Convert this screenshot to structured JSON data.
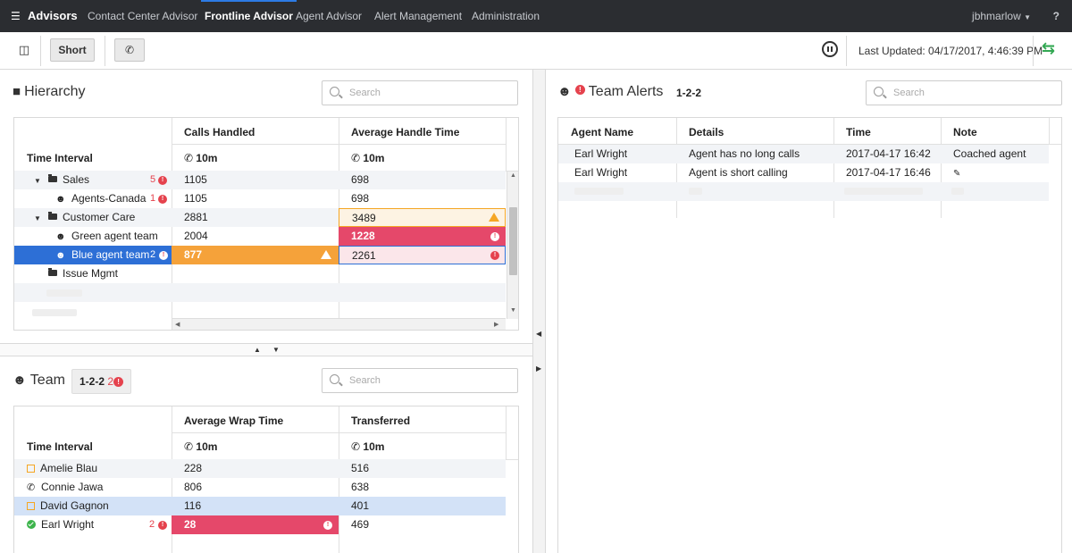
{
  "nav": {
    "brand": "Advisors",
    "items": [
      "Contact Center Advisor",
      "Frontline Advisor",
      "Agent Advisor",
      "Alert Management",
      "Administration"
    ],
    "active_index": 1,
    "user": "jbhmarlow",
    "help": "?"
  },
  "toolbar": {
    "short_label": "Short",
    "last_updated": "Last Updated: 04/17/2017, 4:46:39 PM"
  },
  "hierarchy": {
    "title": "Hierarchy",
    "search_placeholder": "Search",
    "row_header": "Time Interval",
    "columns": [
      {
        "name": "Calls Handled",
        "interval": "10m"
      },
      {
        "name": "Average Handle Time",
        "interval": "10m"
      }
    ],
    "rows": [
      {
        "label": "Sales",
        "count": "5",
        "calls": "1105",
        "aht": "698"
      },
      {
        "label": "Agents-Canada",
        "count": "1",
        "calls": "1105",
        "aht": "698"
      },
      {
        "label": "Customer Care",
        "count": "",
        "calls": "2881",
        "aht": "3489"
      },
      {
        "label": "Green agent team",
        "count": "",
        "calls": "2004",
        "aht": "1228"
      },
      {
        "label": "Blue agent team",
        "count": "2",
        "calls": "877",
        "aht": "2261"
      },
      {
        "label": "Issue Mgmt",
        "count": "",
        "calls": "",
        "aht": ""
      }
    ]
  },
  "team": {
    "title": "Team",
    "team_id": "1-2-2",
    "count": "2",
    "search_placeholder": "Search",
    "row_header": "Time Interval",
    "columns": [
      {
        "name": "Average Wrap Time",
        "interval": "10m"
      },
      {
        "name": "Transferred",
        "interval": "10m"
      }
    ],
    "rows": [
      {
        "name": "Amelie Blau",
        "status": "edit",
        "count": "",
        "wrap": "228",
        "transferred": "516"
      },
      {
        "name": "Connie Jawa",
        "status": "phone",
        "count": "",
        "wrap": "806",
        "transferred": "638"
      },
      {
        "name": "David Gagnon",
        "status": "edit",
        "count": "",
        "wrap": "116",
        "transferred": "401"
      },
      {
        "name": "Earl Wright",
        "status": "ok",
        "count": "2",
        "wrap": "28",
        "transferred": "469"
      }
    ]
  },
  "alerts": {
    "title": "Team Alerts",
    "team_id": "1-2-2",
    "search_placeholder": "Search",
    "columns": [
      "Agent Name",
      "Details",
      "Time",
      "Note"
    ],
    "rows": [
      {
        "agent": "Earl Wright",
        "details": "Agent has no long calls",
        "time": "2017-04-17 16:42",
        "note": "Coached agent"
      },
      {
        "agent": "Earl Wright",
        "details": "Agent is short calling",
        "time": "2017-04-17 16:46",
        "note": ""
      }
    ]
  },
  "colors": {
    "nav_bg": "#2b2d31",
    "selected_row": "#2d6fd6",
    "warning": "#f5a623",
    "critical": "#e5486a",
    "highlight_row": "#d3e2f7"
  }
}
